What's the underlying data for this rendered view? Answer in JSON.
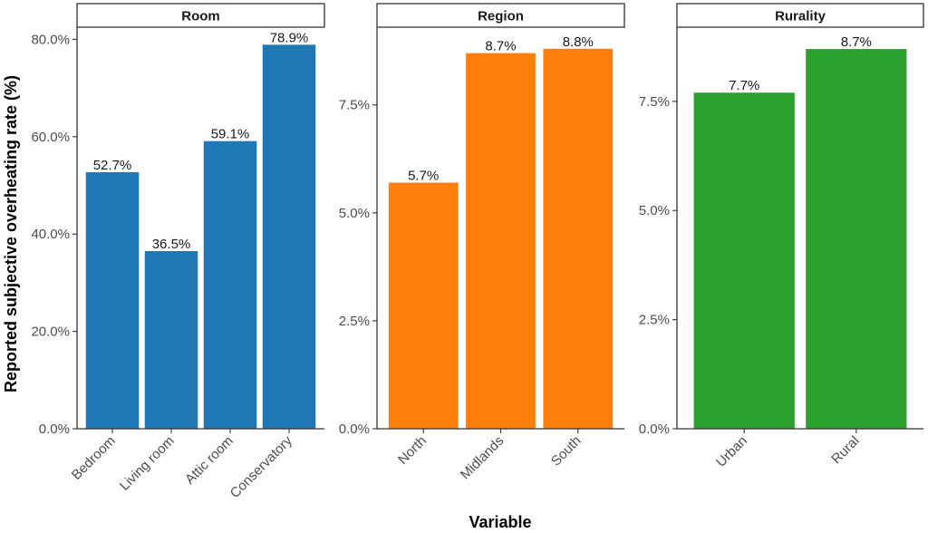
{
  "chart_data": {
    "type": "bar",
    "xlabel": "Variable",
    "ylabel": "Reported subjective overheating rate (%)",
    "grid": false,
    "legend": "none",
    "panels": [
      {
        "title": "Room",
        "color": "#1f77b4",
        "categories": [
          "Bedroom",
          "Living room",
          "Attic room",
          "Conservatory"
        ],
        "values": [
          52.7,
          36.5,
          59.1,
          78.9
        ],
        "labels": [
          "52.7%",
          "36.5%",
          "59.1%",
          "78.9%"
        ],
        "ylim": [
          0,
          82.5
        ],
        "yticks": [
          0,
          20,
          40,
          60,
          80
        ],
        "ytick_labels": [
          "0.0%",
          "20.0%",
          "40.0%",
          "60.0%",
          "80.0%"
        ]
      },
      {
        "title": "Region",
        "color": "#ff7f0e",
        "categories": [
          "North",
          "Midlands",
          "South"
        ],
        "values": [
          5.7,
          8.7,
          8.8
        ],
        "labels": [
          "5.7%",
          "8.7%",
          "8.8%"
        ],
        "ylim": [
          0,
          9.3
        ],
        "yticks": [
          0,
          2.5,
          5.0,
          7.5
        ],
        "ytick_labels": [
          "0.0%",
          "2.5%",
          "5.0%",
          "7.5%"
        ]
      },
      {
        "title": "Rurality",
        "color": "#2ca02c",
        "categories": [
          "Urban",
          "Rural"
        ],
        "values": [
          7.7,
          8.7
        ],
        "labels": [
          "7.7%",
          "8.7%"
        ],
        "ylim": [
          0,
          9.2
        ],
        "yticks": [
          0,
          2.5,
          5.0,
          7.5
        ],
        "ytick_labels": [
          "0.0%",
          "2.5%",
          "5.0%",
          "7.5%"
        ]
      }
    ]
  }
}
